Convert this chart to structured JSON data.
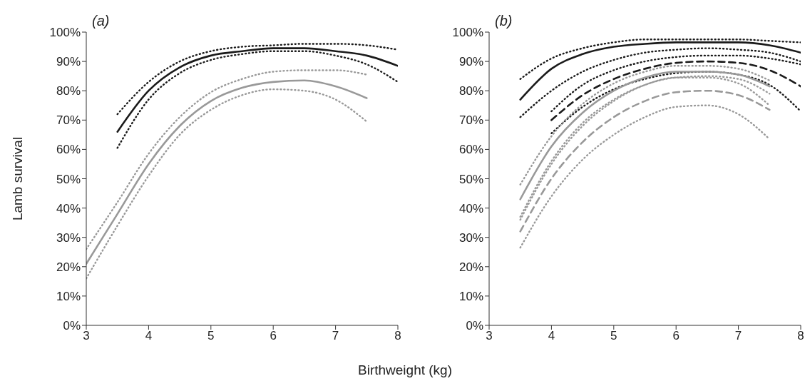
{
  "chart_data": [
    {
      "type": "line",
      "title": "(a)",
      "ylabel": "Lamb survival",
      "xlabel": "Birthweight (kg)",
      "x": [
        3,
        3.5,
        4,
        4.5,
        5,
        5.5,
        6,
        6.5,
        7,
        7.5,
        8
      ],
      "xlim": [
        3,
        8
      ],
      "xticks": [
        3,
        4,
        5,
        6,
        7,
        8
      ],
      "ylim": [
        0,
        100
      ],
      "yticks": [
        {
          "value": 0,
          "label": "0%"
        },
        {
          "value": 10,
          "label": "10%"
        },
        {
          "value": 20,
          "label": "20%"
        },
        {
          "value": 30,
          "label": "30%"
        },
        {
          "value": 40,
          "label": "40%"
        },
        {
          "value": 50,
          "label": "50%"
        },
        {
          "value": 60,
          "label": "60%"
        },
        {
          "value": 70,
          "label": "70%"
        },
        {
          "value": 80,
          "label": "80%"
        },
        {
          "value": 90,
          "label": "90%"
        },
        {
          "value": 100,
          "label": "100%"
        }
      ],
      "grid": false,
      "marker": "none",
      "series": [
        {
          "color": "#1a1a1a",
          "line_style": "solid",
          "values": [
            null,
            66,
            80,
            88,
            92,
            93.5,
            94.5,
            94.5,
            93.5,
            92,
            88.5
          ]
        },
        {
          "color": "#1a1a1a",
          "line_style": "dotted",
          "values": [
            null,
            72,
            83,
            90,
            93.5,
            95,
            95.5,
            96,
            96,
            95.5,
            94
          ]
        },
        {
          "color": "#1a1a1a",
          "line_style": "dotted",
          "values": [
            null,
            60.5,
            77,
            86,
            90.5,
            92.5,
            93.5,
            93.5,
            92,
            89,
            83
          ]
        },
        {
          "color": "#999999",
          "line_style": "solid",
          "values": [
            21,
            38,
            55,
            68,
            76.5,
            81,
            83,
            83.5,
            81.5,
            77.5,
            null
          ]
        },
        {
          "color": "#999999",
          "line_style": "dotted",
          "values": [
            26,
            42,
            58.5,
            71,
            79.5,
            84,
            86.5,
            87,
            87,
            85.5,
            null
          ]
        },
        {
          "color": "#999999",
          "line_style": "dotted",
          "values": [
            16,
            34,
            51,
            65,
            73.5,
            78.5,
            80.5,
            80,
            77,
            69.5,
            null
          ]
        }
      ]
    },
    {
      "type": "line",
      "title": "(b)",
      "x": [
        3.5,
        4,
        4.5,
        5,
        5.5,
        6,
        6.5,
        7,
        7.5,
        8
      ],
      "xlim": [
        3,
        8
      ],
      "xticks": [
        3,
        4,
        5,
        6,
        7,
        8
      ],
      "ylim": [
        0,
        100
      ],
      "yticks": [
        {
          "value": 0,
          "label": "0%"
        },
        {
          "value": 10,
          "label": "10%"
        },
        {
          "value": 20,
          "label": "20%"
        },
        {
          "value": 30,
          "label": "30%"
        },
        {
          "value": 40,
          "label": "40%"
        },
        {
          "value": 50,
          "label": "50%"
        },
        {
          "value": 60,
          "label": "60%"
        },
        {
          "value": 70,
          "label": "70%"
        },
        {
          "value": 80,
          "label": "80%"
        },
        {
          "value": 90,
          "label": "90%"
        },
        {
          "value": 100,
          "label": "100%"
        }
      ],
      "grid": false,
      "marker": "none",
      "series": [
        {
          "color": "#1a1a1a",
          "line_style": "solid",
          "values": [
            77,
            87.5,
            92.5,
            95,
            96,
            96.5,
            96.5,
            96.5,
            95.5,
            93
          ]
        },
        {
          "color": "#1a1a1a",
          "line_style": "dotted",
          "values": [
            84,
            91,
            94.5,
            96.5,
            97.5,
            97.5,
            97.5,
            97.5,
            97,
            96.5
          ]
        },
        {
          "color": "#1a1a1a",
          "line_style": "dotted",
          "values": [
            71,
            80,
            86.5,
            90.5,
            93,
            94,
            94.5,
            94,
            93,
            90
          ]
        },
        {
          "color": "#1a1a1a",
          "line_style": "dashed",
          "values": [
            null,
            70,
            78.5,
            84,
            87.5,
            89.5,
            90,
            89.5,
            87,
            81.5
          ]
        },
        {
          "color": "#1a1a1a",
          "line_style": "dotted",
          "values": [
            null,
            73,
            82,
            87,
            90,
            91.5,
            92,
            92,
            91,
            89
          ]
        },
        {
          "color": "#1a1a1a",
          "line_style": "dotted",
          "values": [
            null,
            65.5,
            74.5,
            80.5,
            84,
            86,
            86.5,
            85.5,
            82,
            73
          ]
        },
        {
          "color": "#999999",
          "line_style": "solid",
          "values": [
            43,
            61,
            72.5,
            80,
            84.5,
            86.5,
            86.5,
            85.5,
            81.5,
            null
          ]
        },
        {
          "color": "#999999",
          "line_style": "dotted",
          "values": [
            48,
            64.5,
            75.5,
            82.5,
            86.5,
            88.5,
            88.5,
            87.5,
            83.5,
            null
          ]
        },
        {
          "color": "#999999",
          "line_style": "dotted",
          "values": [
            37,
            56,
            69,
            77,
            82,
            84.5,
            84.5,
            82.5,
            75,
            null
          ]
        },
        {
          "color": "#999999",
          "line_style": "dashed",
          "values": [
            32,
            50,
            62.5,
            71,
            76.5,
            79.5,
            80,
            78.5,
            73.5,
            null
          ]
        },
        {
          "color": "#999999",
          "line_style": "dotted",
          "values": [
            36,
            55,
            68,
            76.5,
            82,
            84.5,
            85,
            84,
            79,
            null
          ]
        },
        {
          "color": "#999999",
          "line_style": "dotted",
          "values": [
            26.5,
            44,
            56.5,
            65,
            71,
            74.5,
            75,
            72,
            63.5,
            null
          ]
        }
      ]
    }
  ]
}
